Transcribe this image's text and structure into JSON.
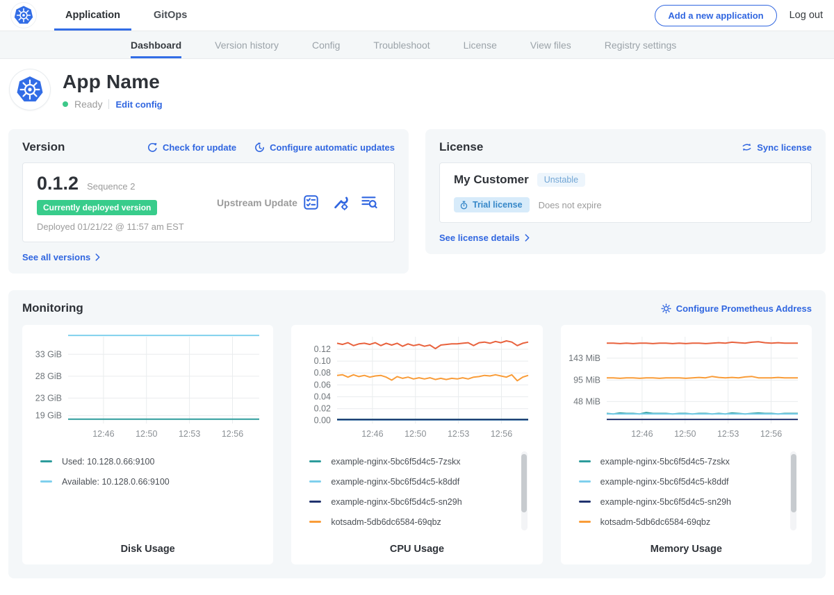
{
  "topnav": {
    "tabs": [
      {
        "label": "Application",
        "active": true
      },
      {
        "label": "GitOps",
        "active": false
      }
    ],
    "add_application_button": "Add a new application",
    "logout_label": "Log out"
  },
  "subnav": {
    "active_tab": "Dashboard",
    "tabs": [
      "Dashboard",
      "Version history",
      "Config",
      "Troubleshoot",
      "License",
      "View files",
      "Registry settings"
    ]
  },
  "app_header": {
    "name": "App Name",
    "status": "Ready",
    "edit_config_link": "Edit config"
  },
  "version_card": {
    "title": "Version",
    "check_for_update_link": "Check for update",
    "configure_updates_link": "Configure automatic updates",
    "version_number": "0.1.2",
    "sequence_label": "Sequence 2",
    "deployed_badge": "Currently deployed version",
    "deployed_timestamp": "Deployed 01/21/22 @ 11:57 am EST",
    "update_type": "Upstream Update",
    "action_icons": [
      "preflight-checks-icon",
      "config-wrench-icon",
      "view-diff-icon"
    ],
    "see_all_versions_link": "See all versions"
  },
  "license_card": {
    "title": "License",
    "sync_license_link": "Sync license",
    "customer_name": "My Customer",
    "channel_badge": "Unstable",
    "license_type_badge": "Trial license",
    "expiry_text": "Does not expire",
    "see_license_details_link": "See license details"
  },
  "monitoring": {
    "title": "Monitoring",
    "configure_prometheus_link": "Configure Prometheus Address"
  },
  "colors": {
    "accent_blue": "#3066e0",
    "kubernetes_blue": "#326de6",
    "success_green": "#38cc8b",
    "teal_series": "#2d9c9c",
    "light_blue_series": "#7fd0ed",
    "navy_series": "#20326e",
    "orange_series": "#f99c38",
    "red_series": "#e8613c"
  },
  "chart_data": [
    {
      "type": "line",
      "title": "Disk Usage",
      "x_ticks": [
        "12:46",
        "12:50",
        "12:53",
        "12:56"
      ],
      "y_ticks": [
        {
          "label": "33 GiB",
          "value": 33
        },
        {
          "label": "28 GiB",
          "value": 28
        },
        {
          "label": "23 GiB",
          "value": 23
        },
        {
          "label": "19 GiB",
          "value": 19
        }
      ],
      "ylim": [
        17.2,
        37.0
      ],
      "legend_scrollbar": false,
      "series": [
        {
          "name": "Used: 10.128.0.66:9100",
          "color": "#2d9c9c",
          "values": [
            18.2,
            18.2,
            18.2,
            18.2,
            18.2,
            18.2,
            18.2,
            18.2,
            18.2,
            18.2,
            18.2,
            18.2,
            18.2
          ]
        },
        {
          "name": "Available: 10.128.0.66:9100",
          "color": "#7fd0ed",
          "values": [
            37.3,
            37.3,
            37.3,
            37.3,
            37.3,
            37.3,
            37.3,
            37.3,
            37.3,
            37.3,
            37.3,
            37.3,
            37.3
          ]
        }
      ]
    },
    {
      "type": "line",
      "title": "CPU Usage",
      "x_ticks": [
        "12:46",
        "12:50",
        "12:53",
        "12:56"
      ],
      "y_ticks": [
        {
          "label": "0.12",
          "value": 0.12
        },
        {
          "label": "0.10",
          "value": 0.1
        },
        {
          "label": "0.08",
          "value": 0.08
        },
        {
          "label": "0.06",
          "value": 0.06
        },
        {
          "label": "0.04",
          "value": 0.04
        },
        {
          "label": "0.02",
          "value": 0.02
        },
        {
          "label": "0.00",
          "value": 0.0
        }
      ],
      "ylim": [
        -0.005,
        0.141
      ],
      "legend_scrollbar": true,
      "series": [
        {
          "name": "example-nginx-5bc6f5d4c5-7zskx",
          "color": "#2d9c9c",
          "values": [
            0.002,
            0.002,
            0.002,
            0.002,
            0.002,
            0.002,
            0.002,
            0.002
          ]
        },
        {
          "name": "example-nginx-5bc6f5d4c5-k8ddf",
          "color": "#7fd0ed",
          "values": [
            0.001,
            0.001,
            0.001,
            0.001,
            0.001,
            0.001,
            0.001,
            0.001
          ]
        },
        {
          "name": "example-nginx-5bc6f5d4c5-sn29h",
          "color": "#20326e",
          "values": [
            0.0015,
            0.0015,
            0.0015,
            0.0015,
            0.0015,
            0.0015,
            0.0015,
            0.0015
          ]
        },
        {
          "name": "kotsadm-5db6dc6584-69qbz",
          "color": "#f99c38",
          "values": [
            0.076,
            0.077,
            0.073,
            0.077,
            0.074,
            0.076,
            0.073,
            0.075,
            0.076,
            0.073,
            0.068,
            0.074,
            0.071,
            0.073,
            0.07,
            0.072,
            0.07,
            0.072,
            0.069,
            0.071,
            0.069,
            0.071,
            0.07,
            0.072,
            0.07,
            0.073,
            0.074,
            0.076,
            0.075,
            0.077,
            0.075,
            0.073,
            0.077,
            0.067,
            0.073,
            0.076
          ]
        },
        {
          "name": "",
          "legend": false,
          "color": "#e8613c",
          "values": [
            0.13,
            0.128,
            0.131,
            0.126,
            0.129,
            0.13,
            0.128,
            0.131,
            0.126,
            0.13,
            0.127,
            0.13,
            0.125,
            0.129,
            0.126,
            0.128,
            0.125,
            0.127,
            0.121,
            0.127,
            0.128,
            0.129,
            0.129,
            0.13,
            0.131,
            0.126,
            0.131,
            0.132,
            0.13,
            0.133,
            0.131,
            0.134,
            0.132,
            0.126,
            0.13,
            0.132
          ]
        }
      ]
    },
    {
      "type": "line",
      "title": "Memory Usage",
      "x_ticks": [
        "12:46",
        "12:50",
        "12:53",
        "12:56"
      ],
      "y_ticks": [
        {
          "label": "143 MiB",
          "value": 143
        },
        {
          "label": "95 MiB",
          "value": 95
        },
        {
          "label": "48 MiB",
          "value": 48
        }
      ],
      "ylim": [
        0,
        190
      ],
      "legend_scrollbar": true,
      "series": [
        {
          "name": "example-nginx-5bc6f5d4c5-7zskx",
          "color": "#2d9c9c",
          "values": [
            22,
            21,
            23,
            22,
            22,
            21,
            24,
            22,
            22,
            22,
            21,
            22,
            22,
            21,
            22,
            22,
            21,
            22,
            21,
            23,
            22,
            21,
            22,
            23,
            22,
            22,
            21,
            22,
            22,
            22
          ]
        },
        {
          "name": "example-nginx-5bc6f5d4c5-k8ddf",
          "color": "#7fd0ed",
          "values": [
            21,
            21,
            21,
            21,
            21,
            21,
            21,
            21
          ]
        },
        {
          "name": "example-nginx-5bc6f5d4c5-sn29h",
          "color": "#20326e",
          "values": [
            9,
            9,
            9,
            9,
            9,
            9,
            9,
            9
          ]
        },
        {
          "name": "kotsadm-5db6dc6584-69qbz",
          "color": "#f99c38",
          "values": [
            100,
            100,
            99,
            100,
            100,
            99,
            100,
            100,
            99,
            100,
            100,
            100,
            99,
            100,
            101,
            100,
            103,
            101,
            100,
            101,
            100,
            102,
            103,
            100,
            100,
            100,
            101,
            100,
            100,
            100
          ]
        },
        {
          "name": "",
          "legend": false,
          "color": "#e8613c",
          "values": [
            176,
            176,
            175,
            176,
            175,
            176,
            176,
            175,
            176,
            176,
            175,
            176,
            175,
            176,
            176,
            175,
            176,
            177,
            176,
            178,
            177,
            176,
            178,
            179,
            177,
            176,
            177,
            176,
            176,
            176
          ]
        }
      ]
    }
  ]
}
